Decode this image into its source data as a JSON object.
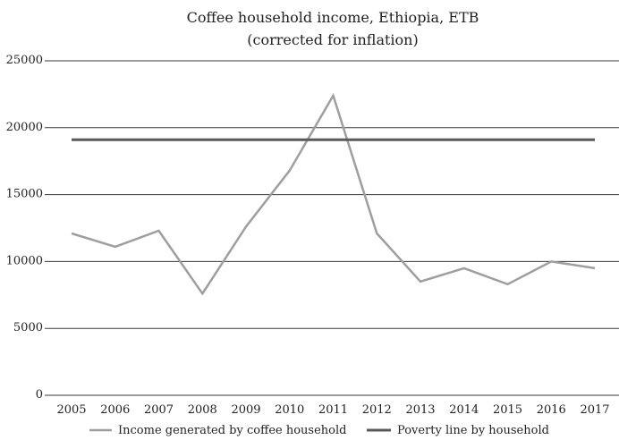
{
  "chart_data": {
    "type": "line",
    "title_lines": [
      "Coffee household income, Ethiopia, ETB",
      "(corrected for inflation)"
    ],
    "xlabel": "",
    "ylabel": "",
    "categories": [
      "2005",
      "2006",
      "2007",
      "2008",
      "2009",
      "2010",
      "2011",
      "2012",
      "2013",
      "2014",
      "2015",
      "2016",
      "2017"
    ],
    "y_ticks": [
      "0",
      "5000",
      "10000",
      "15000",
      "20000",
      "25000"
    ],
    "ylim": [
      0,
      25000
    ],
    "grid": "horizontal",
    "legend_position": "bottom",
    "series": [
      {
        "name": "Income generated by coffee household",
        "color": "#9e9e9e",
        "values": [
          12100,
          11100,
          12300,
          7600,
          12600,
          16800,
          22400,
          12100,
          8500,
          9500,
          8300,
          10000,
          9500
        ]
      },
      {
        "name": "Poverty line by household",
        "color": "#595959",
        "values": [
          19100,
          19100,
          19100,
          19100,
          19100,
          19100,
          19100,
          19100,
          19100,
          19100,
          19100,
          19100,
          19100
        ]
      }
    ]
  }
}
